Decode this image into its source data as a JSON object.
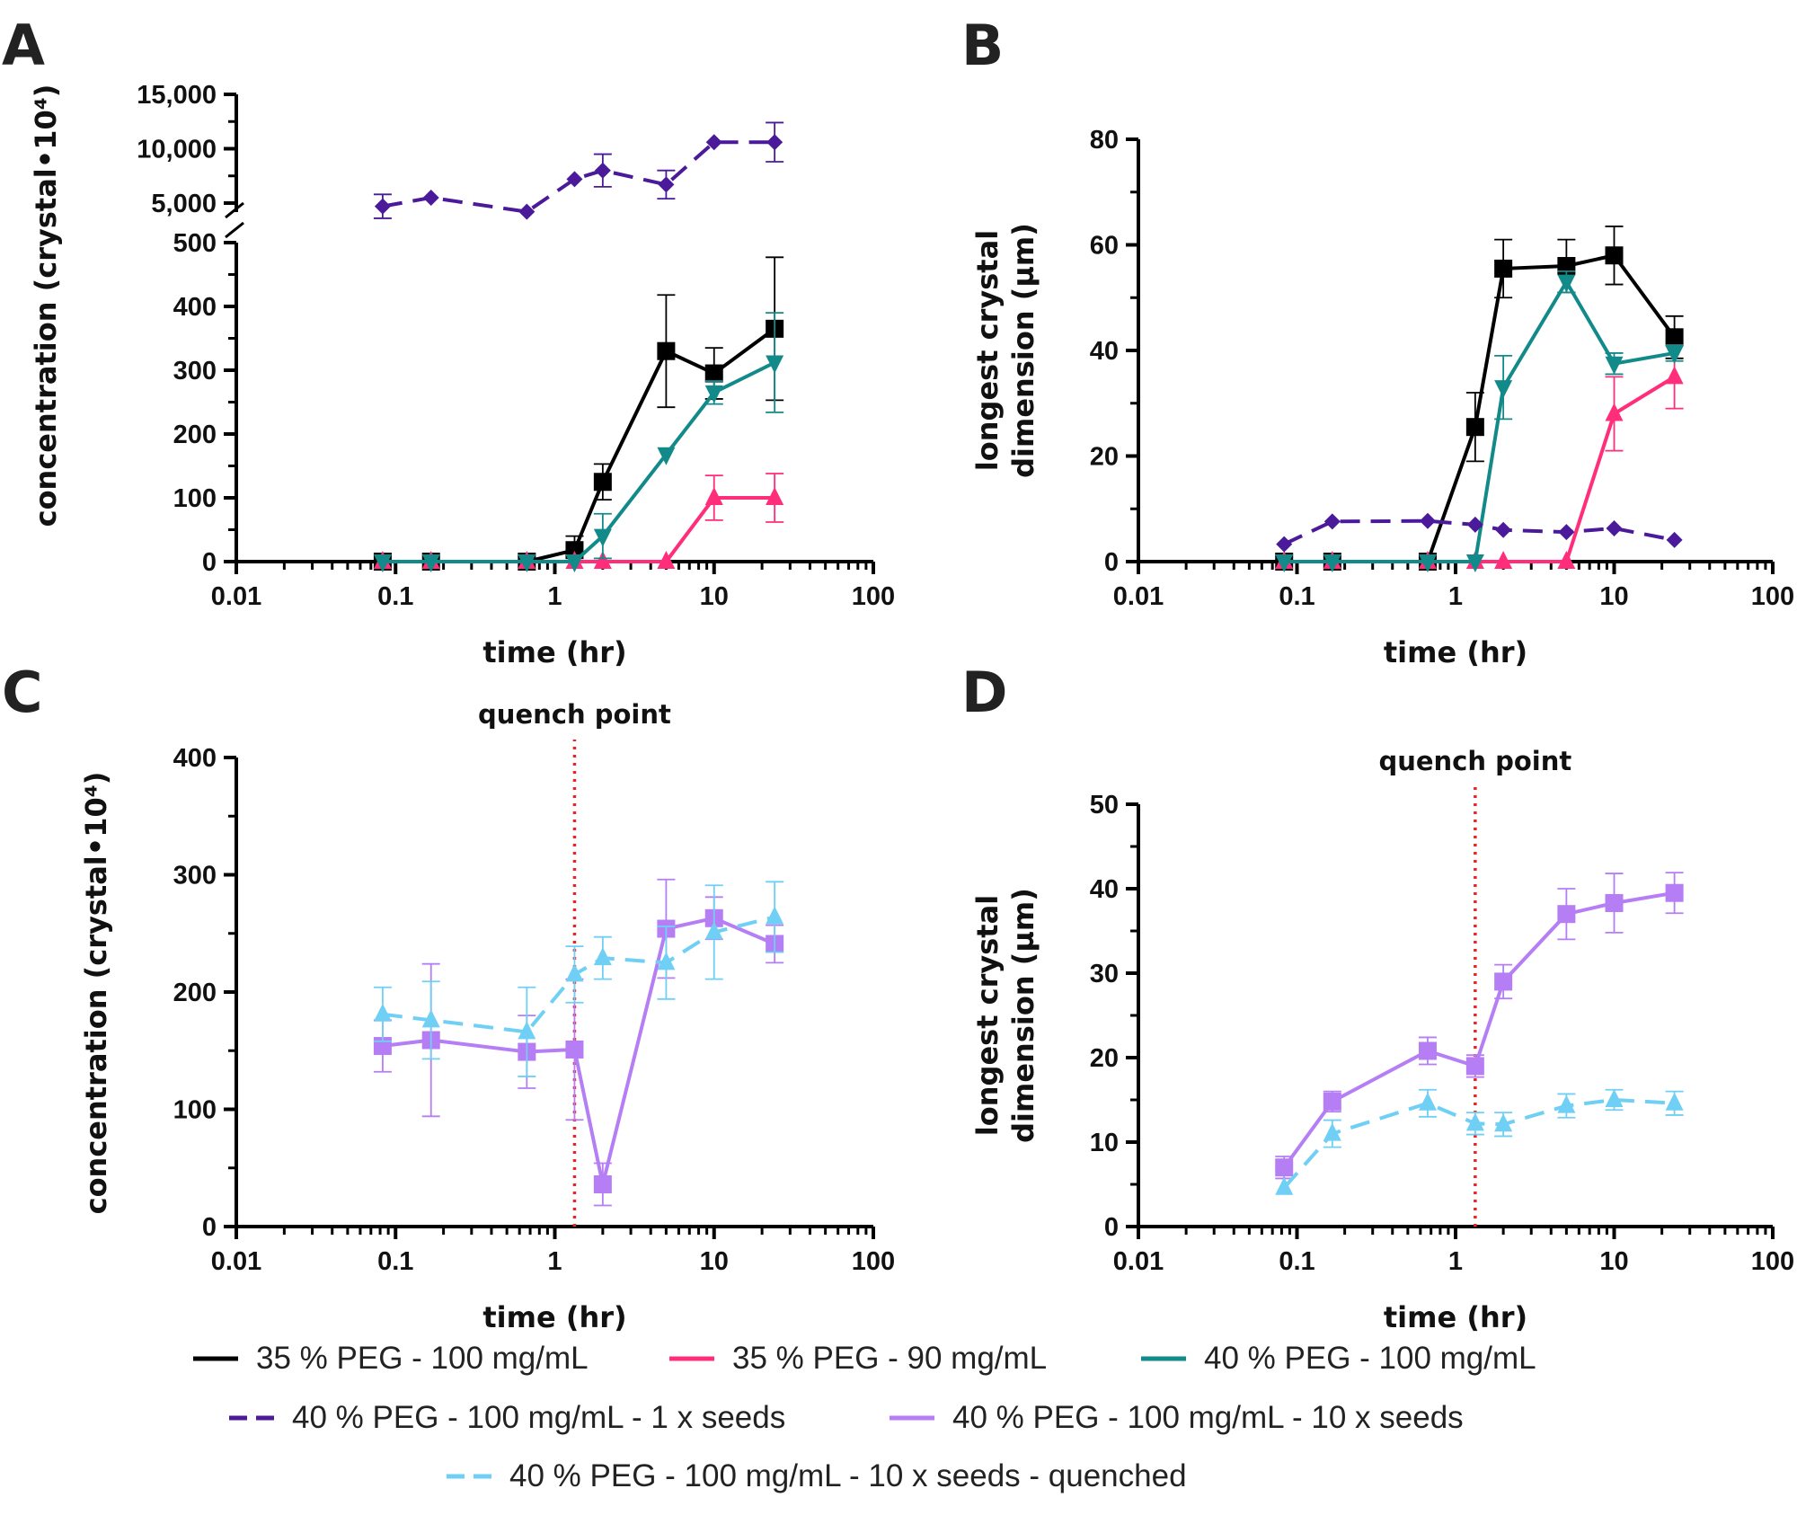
{
  "chart_data": [
    {
      "panel": "A",
      "type": "line",
      "xlabel": "time (hr)",
      "ylabel": "concentration (crystal•10⁴)",
      "xscale": "log",
      "xlim": [
        0.01,
        100
      ],
      "x_ticks": [
        "0.01",
        "0.1",
        "1",
        "10",
        "100"
      ],
      "ylim": [
        0,
        15000
      ],
      "y_break": [
        500,
        5000
      ],
      "y_ticks_lower": [
        "0",
        "100",
        "200",
        "300",
        "400",
        "500"
      ],
      "y_ticks_upper": [
        "5,000",
        "10,000",
        "15,000"
      ],
      "x": [
        0.083,
        0.167,
        0.667,
        1.33,
        2,
        5,
        10,
        24
      ],
      "series": [
        {
          "name": "35 % PEG - 100 mg/mL",
          "key": "s1",
          "values": [
            0,
            0,
            0,
            18,
            125,
            330,
            295,
            365
          ],
          "err": [
            0,
            0,
            0,
            22,
            28,
            88,
            40,
            112
          ]
        },
        {
          "name": "35 % PEG - 90 mg/mL",
          "key": "s2",
          "values": [
            0,
            0,
            0,
            0,
            0,
            0,
            100,
            100
          ],
          "err": [
            0,
            0,
            0,
            0,
            0,
            0,
            35,
            38
          ]
        },
        {
          "name": "40 % PEG  - 100 mg/mL",
          "key": "s3",
          "values": [
            0,
            0,
            0,
            0,
            40,
            168,
            265,
            312
          ],
          "err": [
            0,
            0,
            0,
            0,
            35,
            0,
            18,
            78
          ]
        },
        {
          "name": "40 % PEG - 100 mg/mL - 1 x seeds",
          "key": "s4",
          "values": [
            4700,
            5500,
            4200,
            7200,
            8000,
            6700,
            10600,
            10600
          ],
          "err": [
            1100,
            0,
            0,
            0,
            1500,
            1300,
            0,
            1800
          ]
        }
      ]
    },
    {
      "panel": "B",
      "type": "line",
      "xlabel": "time (hr)",
      "ylabel": "longest crystal dimension (µm)",
      "ylabel_lines": [
        "longest crystal",
        "dimension (µm)"
      ],
      "xscale": "log",
      "xlim": [
        0.01,
        100
      ],
      "x_ticks": [
        "0.01",
        "0.1",
        "1",
        "10",
        "100"
      ],
      "ylim": [
        0,
        80
      ],
      "y_ticks": [
        "0",
        "20",
        "40",
        "60",
        "80"
      ],
      "x": [
        0.083,
        0.167,
        0.667,
        1.33,
        2,
        5,
        10,
        24
      ],
      "series": [
        {
          "name": "35 % PEG - 100 mg/mL",
          "key": "s1",
          "values": [
            0,
            0,
            0,
            25.5,
            55.5,
            56,
            58,
            42.5
          ],
          "err": [
            0,
            0,
            0,
            6.5,
            5.5,
            5,
            5.5,
            4
          ]
        },
        {
          "name": "35 % PEG - 90 mg/mL",
          "key": "s2",
          "values": [
            0,
            0,
            0,
            0,
            0,
            0,
            28,
            35
          ],
          "err": [
            0,
            0,
            0,
            0,
            0,
            0,
            7,
            6
          ]
        },
        {
          "name": "40 % PEG  - 100 mg/mL",
          "key": "s3",
          "values": [
            0,
            0,
            0,
            0,
            33,
            53,
            37.5,
            39.5
          ],
          "err": [
            0,
            0,
            0,
            0,
            6,
            2,
            2,
            1.5
          ]
        },
        {
          "name": "40 % PEG - 100 mg/mL - 1 x seeds",
          "key": "s4",
          "values": [
            3.3,
            7.6,
            7.7,
            7.0,
            6.0,
            5.6,
            6.3,
            4.1
          ],
          "err": [
            0,
            0,
            0,
            0,
            0,
            0,
            0,
            0
          ]
        }
      ]
    },
    {
      "panel": "C",
      "type": "line",
      "xlabel": "time (hr)",
      "ylabel": "concentration (crystal•10⁴)",
      "xscale": "log",
      "xlim": [
        0.01,
        100
      ],
      "x_ticks": [
        "0.01",
        "0.1",
        "1",
        "10",
        "100"
      ],
      "ylim": [
        0,
        400
      ],
      "y_ticks": [
        "0",
        "100",
        "200",
        "300",
        "400"
      ],
      "annotation": {
        "text": "quench point",
        "x": 1.33
      },
      "x": [
        0.083,
        0.167,
        0.667,
        1.33,
        2,
        5,
        10,
        24
      ],
      "series": [
        {
          "name": "40 % PEG - 100 mg/mL - 10 x seeds",
          "key": "s5",
          "values": [
            154,
            159,
            149,
            151,
            36,
            254,
            263,
            241
          ],
          "err": [
            22,
            65,
            31,
            60,
            18,
            42,
            18,
            16
          ]
        },
        {
          "name": "40 % PEG - 100 mg/mL - 10 x seeds - quenched",
          "key": "s6",
          "values": [
            181,
            176,
            166,
            215,
            229,
            225,
            251,
            264
          ],
          "err": [
            23,
            33,
            38,
            24,
            18,
            31,
            40,
            30
          ]
        }
      ]
    },
    {
      "panel": "D",
      "type": "line",
      "xlabel": "time (hr)",
      "ylabel": "longest crystal dimension (µm)",
      "ylabel_lines": [
        "longest crystal",
        "dimension (µm)"
      ],
      "xscale": "log",
      "xlim": [
        0.01,
        100
      ],
      "x_ticks": [
        "0.01",
        "0.1",
        "1",
        "10",
        "100"
      ],
      "ylim": [
        0,
        50
      ],
      "y_ticks": [
        "0",
        "10",
        "20",
        "30",
        "40",
        "50"
      ],
      "annotation": {
        "text": "quench point",
        "x": 1.33
      },
      "x": [
        0.083,
        0.167,
        0.667,
        1.33,
        2,
        5,
        10,
        24
      ],
      "series": [
        {
          "name": "40 % PEG - 100 mg/mL - 10 x seeds",
          "key": "s5",
          "values": [
            7,
            14.8,
            20.8,
            19,
            29,
            37,
            38.3,
            39.5
          ],
          "err": [
            1.3,
            1.2,
            1.6,
            1.3,
            2,
            3,
            3.5,
            2.4
          ]
        },
        {
          "name": "40 % PEG - 100 mg/mL - 10 x seeds - quenched",
          "key": "s6",
          "values": [
            4.6,
            11,
            14.6,
            12.2,
            12.1,
            14.3,
            15,
            14.6
          ],
          "err": [
            0,
            1.6,
            1.6,
            1.3,
            1.4,
            1.4,
            1.2,
            1.4
          ]
        }
      ]
    }
  ],
  "series_styles": {
    "s1": {
      "color": "#000000",
      "dash": false,
      "marker": "square"
    },
    "s2": {
      "color": "#ff2d7a",
      "dash": false,
      "marker": "triangle-up"
    },
    "s3": {
      "color": "#138a8a",
      "dash": false,
      "marker": "triangle-down"
    },
    "s4": {
      "color": "#4b1a9a",
      "dash": true,
      "marker": "diamond"
    },
    "s5": {
      "color": "#b57ef5",
      "dash": false,
      "marker": "square"
    },
    "s6": {
      "color": "#6fcff5",
      "dash": true,
      "marker": "triangle-up"
    }
  },
  "quench_color": "#ee2222",
  "panel_letters": [
    "A",
    "B",
    "C",
    "D"
  ],
  "legend": [
    {
      "label": "35 % PEG - 100 mg/mL",
      "key": "s1"
    },
    {
      "label": "35 % PEG - 90 mg/mL",
      "key": "s2"
    },
    {
      "label": "40 % PEG  - 100 mg/mL",
      "key": "s3"
    },
    {
      "label": "40 % PEG - 100 mg/mL - 1 x seeds",
      "key": "s4"
    },
    {
      "label": "40 % PEG - 100 mg/mL - 10 x seeds",
      "key": "s5"
    },
    {
      "label": "40 % PEG - 100 mg/mL - 10 x seeds - quenched",
      "key": "s6"
    }
  ]
}
